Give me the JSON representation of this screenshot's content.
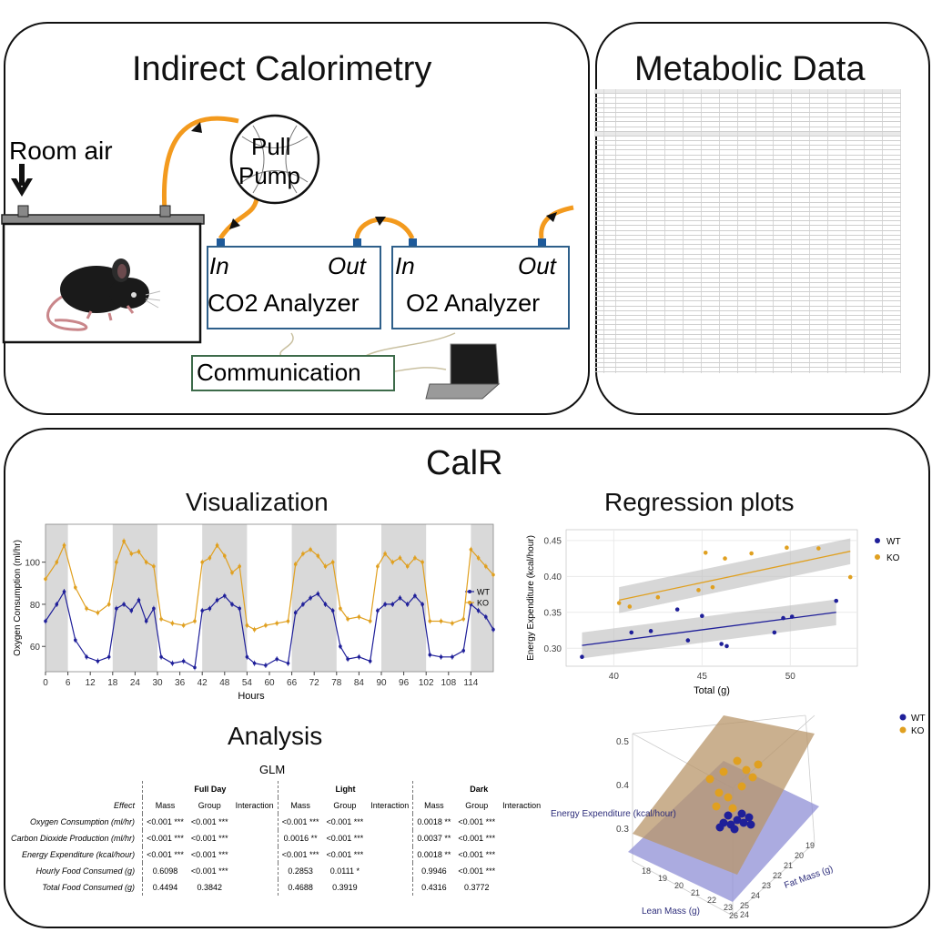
{
  "top_left": {
    "title": "Indirect Calorimetry",
    "room_air": "Room air",
    "pump_line1": "Pull",
    "pump_line2": "Pump",
    "co2": {
      "in": "In",
      "out": "Out",
      "name": "CO2 Analyzer"
    },
    "o2": {
      "in": "In",
      "out": "Out",
      "name": "O2 Analyzer"
    },
    "communication": "Communication"
  },
  "top_right": {
    "title": "Metabolic Data"
  },
  "calr": {
    "title": "CalR",
    "visualization_title": "Visualization",
    "regression_title": "Regression plots",
    "analysis_title": "Analysis"
  },
  "colors": {
    "wt": "#1f1f99",
    "ko": "#e0a020",
    "tube": "#f39a1e",
    "analyzer_border": "#2e5f8a",
    "comm_border": "#3d6b4a",
    "dark_band": "#d9d9d9"
  },
  "chart_data": [
    {
      "type": "line",
      "ylabel": "Oxygen Consumption (ml/hr)",
      "xlabel": "Hours",
      "x_ticks": [
        0,
        6,
        12,
        18,
        24,
        30,
        36,
        42,
        48,
        54,
        60,
        66,
        72,
        78,
        84,
        90,
        96,
        102,
        108,
        114
      ],
      "y_ticks": [
        60,
        80,
        100
      ],
      "xlim": [
        0,
        120
      ],
      "ylim": [
        48,
        118
      ],
      "dark_periods": [
        [
          0,
          6
        ],
        [
          18,
          30
        ],
        [
          42,
          54
        ],
        [
          66,
          78
        ],
        [
          90,
          102
        ],
        [
          114,
          120
        ]
      ],
      "legend_position": "right",
      "series": [
        {
          "name": "WT",
          "x": [
            0,
            3,
            5,
            8,
            11,
            14,
            17,
            19,
            21,
            23,
            25,
            27,
            29,
            31,
            34,
            37,
            40,
            42,
            44,
            46,
            48,
            50,
            52,
            54,
            56,
            59,
            62,
            65,
            67,
            69,
            71,
            73,
            75,
            77,
            79,
            81,
            84,
            87,
            89,
            91,
            93,
            95,
            97,
            99,
            101,
            103,
            106,
            109,
            112,
            114,
            116,
            118,
            120
          ],
          "values": [
            72,
            80,
            86,
            63,
            55,
            53,
            55,
            78,
            80,
            77,
            82,
            72,
            78,
            55,
            52,
            53,
            50,
            77,
            78,
            82,
            84,
            80,
            78,
            55,
            52,
            51,
            54,
            52,
            76,
            80,
            83,
            85,
            80,
            77,
            60,
            54,
            55,
            53,
            77,
            80,
            80,
            83,
            80,
            84,
            80,
            56,
            55,
            55,
            58,
            80,
            77,
            74,
            68
          ]
        },
        {
          "name": "KO",
          "x": [
            0,
            3,
            5,
            8,
            11,
            14,
            17,
            19,
            21,
            23,
            25,
            27,
            29,
            31,
            34,
            37,
            40,
            42,
            44,
            46,
            48,
            50,
            52,
            54,
            56,
            59,
            62,
            65,
            67,
            69,
            71,
            73,
            75,
            77,
            79,
            81,
            84,
            87,
            89,
            91,
            93,
            95,
            97,
            99,
            101,
            103,
            106,
            109,
            112,
            114,
            116,
            118,
            120
          ],
          "values": [
            92,
            100,
            108,
            88,
            78,
            76,
            80,
            100,
            110,
            104,
            105,
            100,
            98,
            73,
            71,
            70,
            72,
            100,
            102,
            108,
            103,
            95,
            98,
            70,
            68,
            70,
            71,
            72,
            99,
            104,
            106,
            103,
            98,
            100,
            78,
            73,
            74,
            72,
            98,
            104,
            100,
            102,
            98,
            102,
            100,
            72,
            72,
            71,
            73,
            106,
            102,
            98,
            94
          ]
        }
      ]
    },
    {
      "type": "scatter",
      "ylabel": "Energy Expenditure (kcal/hour)",
      "xlabel": "Total (g)",
      "x_ticks": [
        40,
        45,
        50
      ],
      "y_ticks": [
        0.3,
        0.35,
        0.4,
        0.45
      ],
      "xlim": [
        37.3,
        53.8
      ],
      "ylim": [
        0.275,
        0.465
      ],
      "legend_position": "top-right",
      "series": [
        {
          "name": "WT",
          "x": [
            38.2,
            41.0,
            42.1,
            43.6,
            44.2,
            45.0,
            46.1,
            46.4,
            49.1,
            49.6,
            50.1,
            52.6
          ],
          "y": [
            0.288,
            0.322,
            0.324,
            0.354,
            0.311,
            0.345,
            0.306,
            0.303,
            0.322,
            0.342,
            0.344,
            0.366
          ],
          "fit": [
            [
              38.2,
              0.304
            ],
            [
              52.6,
              0.35
            ]
          ]
        },
        {
          "name": "KO",
          "x": [
            40.3,
            40.9,
            42.5,
            44.8,
            45.2,
            45.6,
            46.3,
            47.8,
            49.8,
            51.6,
            53.4
          ],
          "y": [
            0.363,
            0.358,
            0.371,
            0.381,
            0.433,
            0.385,
            0.425,
            0.432,
            0.44,
            0.439,
            0.399
          ],
          "fit": [
            [
              40.3,
              0.367
            ],
            [
              53.4,
              0.435
            ]
          ]
        }
      ]
    },
    {
      "type": "scatter",
      "title": "",
      "zlabel": "Energy Expenditure (kcal/hour)",
      "xlabel": "Lean Mass (g)",
      "ylabel": "Fat Mass (g)",
      "z_ticks": [
        0.3,
        0.4,
        0.5
      ],
      "x_ticks": [
        18,
        19,
        20,
        21,
        22,
        23,
        24
      ],
      "y_ticks": [
        19,
        20,
        21,
        22,
        23,
        24,
        25,
        26
      ],
      "legend": [
        "WT",
        "KO"
      ]
    }
  ],
  "glm": {
    "title": "GLM",
    "groups": [
      "Full Day",
      "Light",
      "Dark"
    ],
    "effect_header": "Effect",
    "subheaders": [
      "Mass",
      "Group",
      "Interaction"
    ],
    "rows": [
      {
        "effect": "Oxygen Consumption (ml/hr)",
        "cells": [
          "<0.001 ***",
          "<0.001 ***",
          "",
          "<0.001 ***",
          "<0.001 ***",
          "",
          "0.0018 **",
          "<0.001 ***",
          ""
        ]
      },
      {
        "effect": "Carbon Dioxide Production (ml/hr)",
        "cells": [
          "<0.001 ***",
          "<0.001 ***",
          "",
          "0.0016 **",
          "<0.001 ***",
          "",
          "0.0037 **",
          "<0.001 ***",
          ""
        ]
      },
      {
        "effect": "Energy Expenditure (kcal/hour)",
        "cells": [
          "<0.001 ***",
          "<0.001 ***",
          "",
          "<0.001 ***",
          "<0.001 ***",
          "",
          "0.0018 **",
          "<0.001 ***",
          ""
        ]
      },
      {
        "effect": "Hourly Food Consumed (g)",
        "cells": [
          "0.6098",
          "<0.001 ***",
          "",
          "0.2853",
          "0.0111 *",
          "",
          "0.9946",
          "<0.001 ***",
          ""
        ]
      },
      {
        "effect": "Total Food Consumed (g)",
        "cells": [
          "0.4494",
          "0.3842",
          "",
          "0.4688",
          "0.3919",
          "",
          "0.4316",
          "0.3772",
          ""
        ]
      }
    ]
  },
  "icons": [
    "arrow-down-icon",
    "mouse-icon",
    "pump-icon",
    "laptop-icon",
    "flow-arrow-icon"
  ]
}
